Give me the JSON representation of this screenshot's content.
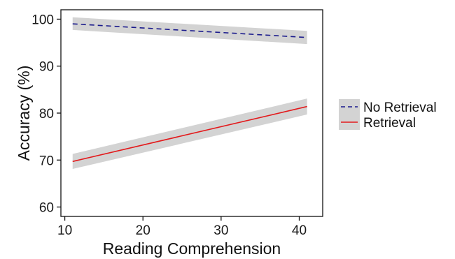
{
  "chart_data": {
    "type": "line",
    "title": "",
    "xlabel": "Reading Comprehension",
    "ylabel": "Accuracy (%)",
    "xlim": [
      9.5,
      43
    ],
    "ylim": [
      58,
      102
    ],
    "xticks": [
      10,
      20,
      30,
      40
    ],
    "yticks": [
      60,
      70,
      80,
      90,
      100
    ],
    "grid": false,
    "legend_position": "right",
    "series": [
      {
        "name": "No Retrieval",
        "color": "#1a1a8c",
        "line_style": "dashed",
        "x": [
          11,
          41
        ],
        "y": [
          99.0,
          96.1
        ],
        "ci_lower": [
          97.7,
          94.7
        ],
        "ci_upper": [
          100.4,
          97.5
        ]
      },
      {
        "name": "Retrieval",
        "color": "#e31a1c",
        "line_style": "solid",
        "x": [
          11,
          41
        ],
        "y": [
          69.7,
          81.4
        ],
        "ci_lower": [
          68.1,
          79.7
        ],
        "ci_upper": [
          71.3,
          83.1
        ]
      }
    ],
    "band_color": "#d3d3d3"
  }
}
